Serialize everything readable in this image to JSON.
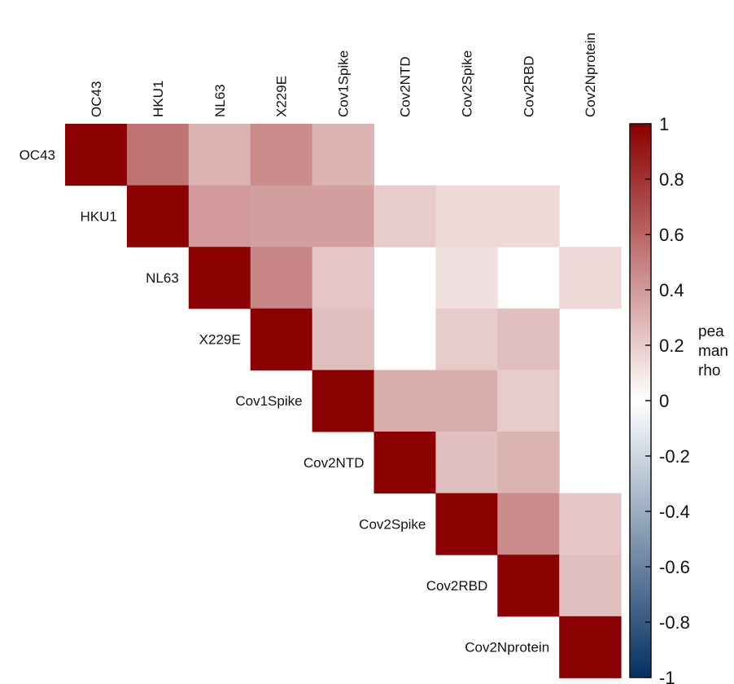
{
  "chart_data": {
    "type": "heatmap",
    "layout": "upper-triangle",
    "variables": [
      "OC43",
      "HKU1",
      "NL63",
      "X229E",
      "Cov1Spike",
      "Cov2NTD",
      "Cov2Spike",
      "Cov2RBD",
      "Cov2Nprotein"
    ],
    "matrix": [
      [
        1,
        0.55,
        0.3,
        0.45,
        0.3,
        null,
        null,
        null,
        null
      ],
      [
        null,
        1,
        0.4,
        0.38,
        0.38,
        0.2,
        0.15,
        0.15,
        null
      ],
      [
        null,
        null,
        1,
        0.48,
        0.22,
        null,
        0.12,
        null,
        0.15
      ],
      [
        null,
        null,
        null,
        1,
        0.25,
        null,
        0.2,
        0.25,
        null
      ],
      [
        null,
        null,
        null,
        null,
        1,
        0.32,
        0.32,
        0.2,
        null
      ],
      [
        null,
        null,
        null,
        null,
        null,
        1,
        0.25,
        0.3,
        null
      ],
      [
        null,
        null,
        null,
        null,
        null,
        null,
        1,
        0.45,
        0.22
      ],
      [
        null,
        null,
        null,
        null,
        null,
        null,
        null,
        1,
        0.25
      ],
      [
        null,
        null,
        null,
        null,
        null,
        null,
        null,
        null,
        1
      ]
    ],
    "color_scale": {
      "min": -1,
      "max": 1,
      "low_color": "#053061",
      "mid_color": "#ffffff",
      "high_color": "#8b0000",
      "ticks": [
        "1",
        "0.8",
        "0.6",
        "0.4",
        "0.2",
        "0",
        "-0.2",
        "-0.4",
        "-0.6",
        "-0.8",
        "-1"
      ]
    },
    "legend_title_fragments": [
      "pea",
      "man",
      "rho"
    ],
    "legend_placement": "right"
  }
}
